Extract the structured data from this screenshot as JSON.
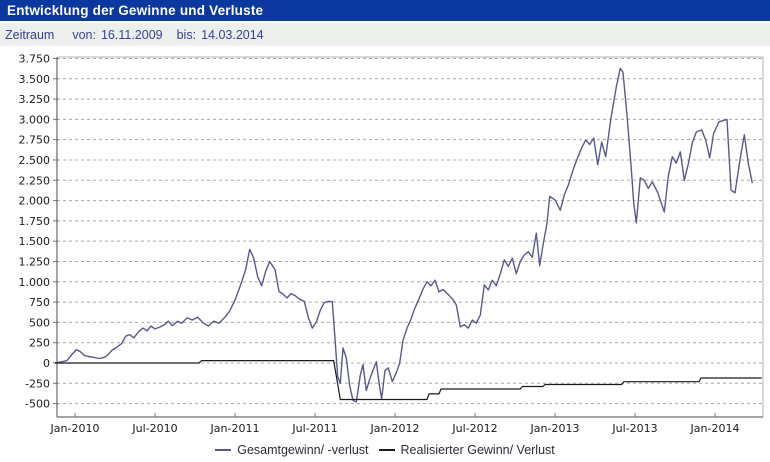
{
  "header": {
    "title": "Entwicklung der Gewinne und Verluste",
    "bg_color": "#0b38a0",
    "text_color": "#ffffff"
  },
  "subheader": {
    "label": "Zeitraum",
    "from_label": "von:",
    "from_value": "16.11.2009",
    "to_label": "bis:",
    "to_value": "14.03.2014",
    "bg_color": "#edefec",
    "text_color": "#35419b"
  },
  "chart_data": {
    "type": "line",
    "title": "Entwicklung der Gewinne und Verluste",
    "xlabel": "",
    "ylabel": "",
    "grid": "horizontal-dashed",
    "legend_position": "bottom-center",
    "ylim": [
      -500,
      3750
    ],
    "ytick_step": 250,
    "yticks": {
      "values": [
        -500,
        -250,
        0,
        250,
        500,
        750,
        1000,
        1250,
        1500,
        1750,
        2000,
        2250,
        2500,
        2750,
        3000,
        3250,
        3500,
        3750
      ],
      "labels": [
        "-500",
        "-250",
        "0",
        "250",
        "500",
        "750",
        "1.000",
        "1.250",
        "1.500",
        "1.750",
        "2.000",
        "2.250",
        "2.500",
        "2.750",
        "3.000",
        "3.250",
        "3.500",
        "3.750"
      ]
    },
    "xlim_months": [
      -1.35,
      51.6
    ],
    "x_unit": "months since Jan-2010",
    "xticks": [
      {
        "m": 0,
        "label": "Jan-2010"
      },
      {
        "m": 6,
        "label": "Jul-2010"
      },
      {
        "m": 12,
        "label": "Jan-2011"
      },
      {
        "m": 18,
        "label": "Jul-2011"
      },
      {
        "m": 24,
        "label": "Jan-2012"
      },
      {
        "m": 30,
        "label": "Jul-2012"
      },
      {
        "m": 36,
        "label": "Jan-2013"
      },
      {
        "m": 42,
        "label": "Jul-2013"
      },
      {
        "m": 48,
        "label": "Jan-2014"
      }
    ],
    "grid_color": "#a8a8a8",
    "series": [
      {
        "name": "Gesamtgewinn/ -verlust",
        "color": "#585a8c",
        "points": [
          [
            -1.5,
            0
          ],
          [
            -1.0,
            15
          ],
          [
            -0.6,
            30
          ],
          [
            -0.2,
            110
          ],
          [
            0.1,
            165
          ],
          [
            0.4,
            140
          ],
          [
            0.7,
            95
          ],
          [
            1.0,
            80
          ],
          [
            1.4,
            70
          ],
          [
            1.8,
            55
          ],
          [
            2.1,
            65
          ],
          [
            2.4,
            90
          ],
          [
            2.8,
            160
          ],
          [
            3.1,
            190
          ],
          [
            3.5,
            240
          ],
          [
            3.8,
            330
          ],
          [
            4.1,
            350
          ],
          [
            4.4,
            310
          ],
          [
            4.8,
            390
          ],
          [
            5.1,
            430
          ],
          [
            5.4,
            395
          ],
          [
            5.7,
            455
          ],
          [
            6.0,
            420
          ],
          [
            6.4,
            445
          ],
          [
            6.7,
            470
          ],
          [
            7.0,
            515
          ],
          [
            7.3,
            460
          ],
          [
            7.7,
            515
          ],
          [
            8.0,
            490
          ],
          [
            8.4,
            555
          ],
          [
            8.8,
            530
          ],
          [
            9.2,
            565
          ],
          [
            9.6,
            495
          ],
          [
            10.0,
            455
          ],
          [
            10.4,
            515
          ],
          [
            10.8,
            490
          ],
          [
            11.2,
            555
          ],
          [
            11.6,
            640
          ],
          [
            12.0,
            775
          ],
          [
            12.4,
            950
          ],
          [
            12.8,
            1150
          ],
          [
            13.1,
            1400
          ],
          [
            13.4,
            1290
          ],
          [
            13.7,
            1060
          ],
          [
            14.0,
            950
          ],
          [
            14.3,
            1130
          ],
          [
            14.6,
            1250
          ],
          [
            15.0,
            1150
          ],
          [
            15.3,
            880
          ],
          [
            15.6,
            850
          ],
          [
            15.9,
            800
          ],
          [
            16.2,
            855
          ],
          [
            16.5,
            830
          ],
          [
            16.9,
            780
          ],
          [
            17.2,
            760
          ],
          [
            17.5,
            560
          ],
          [
            17.8,
            430
          ],
          [
            18.1,
            505
          ],
          [
            18.4,
            650
          ],
          [
            18.7,
            745
          ],
          [
            19.0,
            760
          ],
          [
            19.3,
            755
          ],
          [
            19.5,
            300
          ],
          [
            19.7,
            -170
          ],
          [
            19.9,
            -250
          ],
          [
            20.1,
            185
          ],
          [
            20.35,
            60
          ],
          [
            20.6,
            -280
          ],
          [
            20.85,
            -460
          ],
          [
            21.1,
            -480
          ],
          [
            21.4,
            -150
          ],
          [
            21.6,
            -20
          ],
          [
            21.85,
            -340
          ],
          [
            22.1,
            -200
          ],
          [
            22.35,
            -90
          ],
          [
            22.6,
            15
          ],
          [
            22.85,
            -300
          ],
          [
            23.0,
            -440
          ],
          [
            23.25,
            -90
          ],
          [
            23.5,
            -60
          ],
          [
            23.8,
            -230
          ],
          [
            24.1,
            -120
          ],
          [
            24.35,
            0
          ],
          [
            24.6,
            280
          ],
          [
            24.9,
            430
          ],
          [
            25.2,
            540
          ],
          [
            25.5,
            680
          ],
          [
            25.8,
            790
          ],
          [
            26.1,
            910
          ],
          [
            26.4,
            1000
          ],
          [
            26.7,
            950
          ],
          [
            27.0,
            1020
          ],
          [
            27.3,
            875
          ],
          [
            27.6,
            905
          ],
          [
            27.9,
            860
          ],
          [
            28.3,
            790
          ],
          [
            28.6,
            715
          ],
          [
            28.9,
            445
          ],
          [
            29.2,
            470
          ],
          [
            29.5,
            430
          ],
          [
            29.8,
            530
          ],
          [
            30.1,
            490
          ],
          [
            30.4,
            590
          ],
          [
            30.7,
            960
          ],
          [
            31.0,
            900
          ],
          [
            31.3,
            1020
          ],
          [
            31.6,
            950
          ],
          [
            31.9,
            1100
          ],
          [
            32.2,
            1270
          ],
          [
            32.5,
            1190
          ],
          [
            32.8,
            1290
          ],
          [
            33.1,
            1100
          ],
          [
            33.4,
            1250
          ],
          [
            33.7,
            1330
          ],
          [
            34.0,
            1370
          ],
          [
            34.3,
            1300
          ],
          [
            34.6,
            1600
          ],
          [
            34.85,
            1200
          ],
          [
            35.1,
            1450
          ],
          [
            35.4,
            1720
          ],
          [
            35.6,
            2050
          ],
          [
            36.0,
            2010
          ],
          [
            36.4,
            1880
          ],
          [
            36.7,
            2070
          ],
          [
            37.0,
            2190
          ],
          [
            37.4,
            2400
          ],
          [
            37.7,
            2530
          ],
          [
            38.0,
            2650
          ],
          [
            38.3,
            2745
          ],
          [
            38.6,
            2690
          ],
          [
            38.9,
            2770
          ],
          [
            39.2,
            2440
          ],
          [
            39.5,
            2720
          ],
          [
            39.8,
            2540
          ],
          [
            40.2,
            3020
          ],
          [
            40.6,
            3400
          ],
          [
            40.9,
            3630
          ],
          [
            41.1,
            3580
          ],
          [
            41.4,
            3050
          ],
          [
            41.7,
            2440
          ],
          [
            41.9,
            1970
          ],
          [
            42.1,
            1725
          ],
          [
            42.4,
            2280
          ],
          [
            42.7,
            2250
          ],
          [
            43.0,
            2150
          ],
          [
            43.3,
            2230
          ],
          [
            43.7,
            2100
          ],
          [
            44.2,
            1860
          ],
          [
            44.5,
            2300
          ],
          [
            44.8,
            2540
          ],
          [
            45.1,
            2460
          ],
          [
            45.4,
            2600
          ],
          [
            45.7,
            2250
          ],
          [
            46.0,
            2450
          ],
          [
            46.3,
            2710
          ],
          [
            46.6,
            2845
          ],
          [
            47.0,
            2870
          ],
          [
            47.3,
            2745
          ],
          [
            47.6,
            2525
          ],
          [
            47.9,
            2830
          ],
          [
            48.3,
            2970
          ],
          [
            48.9,
            3000
          ],
          [
            49.2,
            2130
          ],
          [
            49.5,
            2095
          ],
          [
            49.9,
            2525
          ],
          [
            50.2,
            2810
          ],
          [
            50.5,
            2460
          ],
          [
            50.8,
            2215
          ]
        ]
      },
      {
        "name": "Realisierter Gewinn/ Verlust",
        "color": "#1a1a1a",
        "points": [
          [
            -1.5,
            0
          ],
          [
            9.3,
            0
          ],
          [
            9.5,
            30
          ],
          [
            19.4,
            30
          ],
          [
            19.9,
            -450
          ],
          [
            26.4,
            -450
          ],
          [
            26.55,
            -380
          ],
          [
            27.3,
            -380
          ],
          [
            27.45,
            -320
          ],
          [
            33.4,
            -320
          ],
          [
            33.55,
            -290
          ],
          [
            35.1,
            -290
          ],
          [
            35.25,
            -265
          ],
          [
            41.0,
            -265
          ],
          [
            41.15,
            -230
          ],
          [
            46.8,
            -230
          ],
          [
            46.95,
            -185
          ],
          [
            51.5,
            -185
          ]
        ]
      }
    ]
  }
}
